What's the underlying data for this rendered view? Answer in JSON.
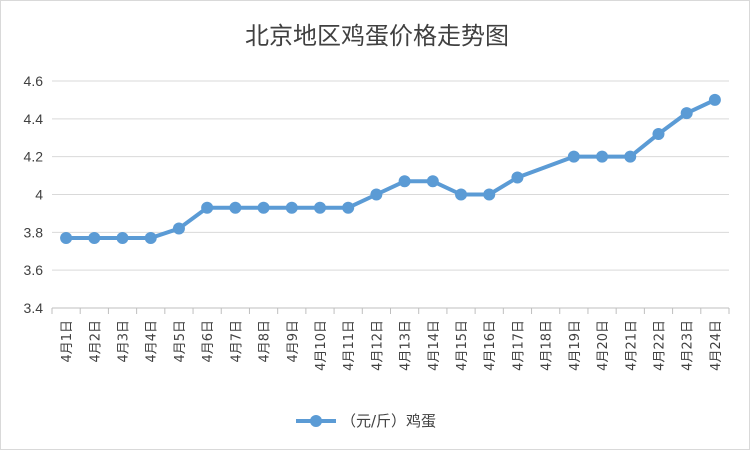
{
  "chart_data": {
    "type": "line",
    "title": "北京地区鸡蛋价格走势图",
    "categories": [
      "4月1日",
      "4月2日",
      "4月3日",
      "4月4日",
      "4月5日",
      "4月6日",
      "4月7日",
      "4月8日",
      "4月9日",
      "4月10日",
      "4月11日",
      "4月12日",
      "4月13日",
      "4月14日",
      "4月15日",
      "4月16日",
      "4月17日",
      "4月18日",
      "4月19日",
      "4月20日",
      "4月21日",
      "4月22日",
      "4月23日",
      "4月24日"
    ],
    "series": [
      {
        "name": "（元/斤）鸡蛋",
        "values": [
          3.77,
          3.77,
          3.77,
          3.77,
          3.82,
          3.93,
          3.93,
          3.93,
          3.93,
          3.93,
          3.93,
          4.0,
          4.07,
          4.07,
          4.0,
          4.0,
          4.09,
          null,
          4.2,
          4.2,
          4.2,
          4.32,
          4.43,
          4.5
        ],
        "color": "#5b9bd5"
      }
    ],
    "ylim": [
      3.4,
      4.6
    ],
    "yticks": [
      "3.4",
      "3.6",
      "3.8",
      "4",
      "4.2",
      "4.4",
      "4.6"
    ],
    "ytick_values": [
      3.4,
      3.6,
      3.8,
      4.0,
      4.2,
      4.4,
      4.6
    ],
    "grid": true,
    "legend": "bottom"
  }
}
